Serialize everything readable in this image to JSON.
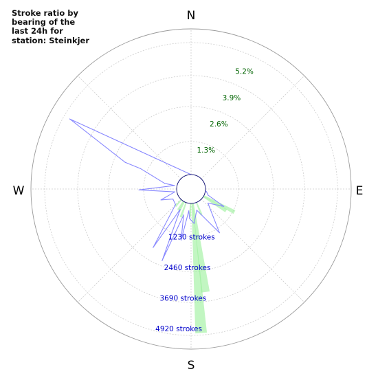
{
  "chart_data": {
    "type": "polar-rose",
    "title": "Stroke ratio by bearing of the last 24h for station: Steinkjer",
    "directions": [
      "N",
      "E",
      "S",
      "W"
    ],
    "percent_rings": [
      "1.3%",
      "2.6%",
      "3.9%",
      "5.2%"
    ],
    "percent_ring_values": [
      1.3,
      2.6,
      3.9,
      5.2
    ],
    "count_rings": [
      "1230 strokes",
      "2460 strokes",
      "3690 strokes",
      "4920 strokes"
    ],
    "count_ring_values": [
      1230,
      2460,
      3690,
      4920
    ],
    "grid": true,
    "percent_series": {
      "name": "",
      "color": "#90ee90",
      "bearings_deg": [
        118,
        122,
        158,
        172,
        176,
        182,
        200,
        208,
        212,
        222
      ],
      "values_percent": [
        1.55,
        1.2,
        0.6,
        4.0,
        5.8,
        0.6,
        0.7,
        0.5,
        0.45,
        0.4
      ]
    },
    "count_series": {
      "name": "",
      "color": "#8888ff",
      "points": [
        {
          "bearing_deg": 300,
          "strokes": 5000
        },
        {
          "bearing_deg": 292,
          "strokes": 2250
        },
        {
          "bearing_deg": 292,
          "strokes": 1600
        },
        {
          "bearing_deg": 282,
          "strokes": 500
        },
        {
          "bearing_deg": 282,
          "strokes": 100
        },
        {
          "bearing_deg": 269,
          "strokes": 1500
        },
        {
          "bearing_deg": 260,
          "strokes": 80
        },
        {
          "bearing_deg": 250,
          "strokes": 700
        },
        {
          "bearing_deg": 241,
          "strokes": 250
        },
        {
          "bearing_deg": 225,
          "strokes": 300
        },
        {
          "bearing_deg": 213,
          "strokes": 2200
        },
        {
          "bearing_deg": 208,
          "strokes": 350
        },
        {
          "bearing_deg": 202,
          "strokes": 2500
        },
        {
          "bearing_deg": 196,
          "strokes": 500
        },
        {
          "bearing_deg": 191,
          "strokes": 1500
        },
        {
          "bearing_deg": 186,
          "strokes": 300
        },
        {
          "bearing_deg": 183,
          "strokes": 600
        },
        {
          "bearing_deg": 175,
          "strokes": 800
        },
        {
          "bearing_deg": 165,
          "strokes": 300
        },
        {
          "bearing_deg": 147,
          "strokes": 1500
        },
        {
          "bearing_deg": 130,
          "strokes": 300
        },
        {
          "bearing_deg": 118,
          "strokes": 900
        },
        {
          "bearing_deg": 110,
          "strokes": 150
        },
        {
          "bearing_deg": 100,
          "strokes": 50
        },
        {
          "bearing_deg": 0,
          "strokes": 0
        }
      ]
    }
  }
}
